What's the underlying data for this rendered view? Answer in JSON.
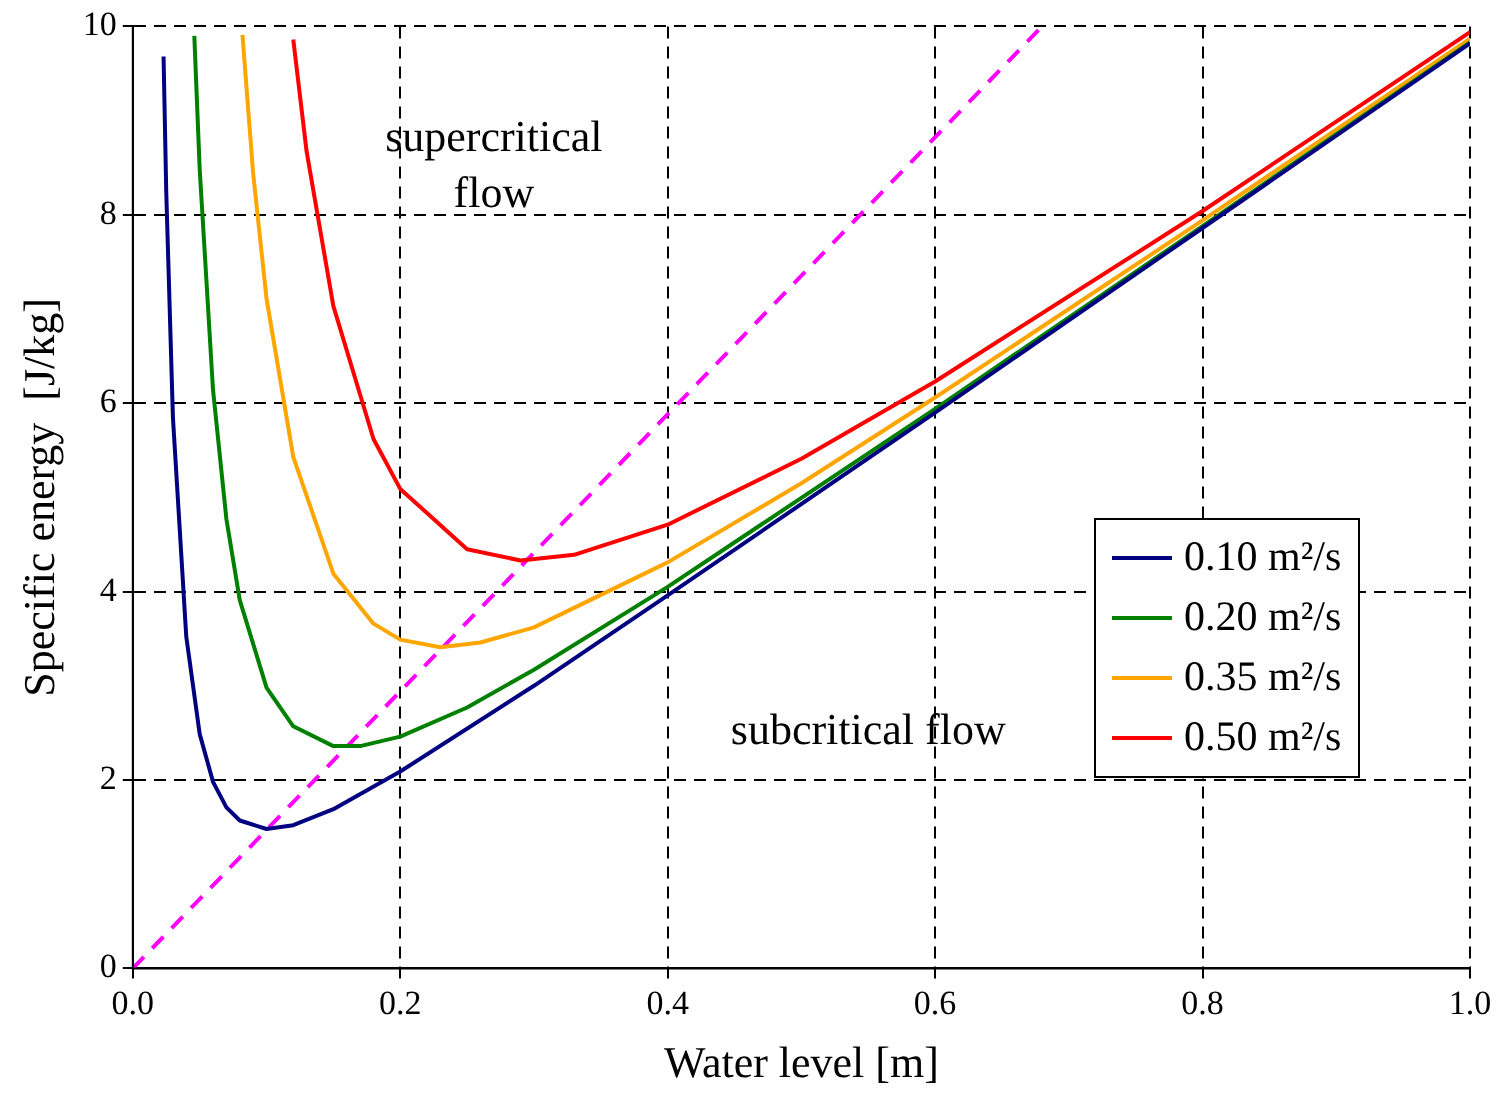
{
  "chart_data": {
    "type": "line",
    "xlabel": "Water level [m]",
    "ylabel": "Specific energy  [J/kg]",
    "xlim": [
      0,
      1
    ],
    "ylim": [
      0,
      10
    ],
    "xticks": [
      {
        "value": 0,
        "label": "0.0"
      },
      {
        "value": 0.2,
        "label": "0.2"
      },
      {
        "value": 0.4,
        "label": "0.4"
      },
      {
        "value": 0.6,
        "label": "0.6"
      },
      {
        "value": 0.8,
        "label": "0.8"
      },
      {
        "value": 1,
        "label": "1.0"
      }
    ],
    "yticks": [
      0,
      2,
      4,
      6,
      8,
      10
    ],
    "grid": true,
    "legend": "right",
    "marker": "none",
    "series": [
      {
        "name": "0.10 m²/s",
        "color": "#000080",
        "x": [
          0.023,
          0.025,
          0.03,
          0.04,
          0.05,
          0.06,
          0.07,
          0.08,
          0.1,
          0.12,
          0.15,
          0.2,
          0.3,
          0.4,
          0.6,
          0.8,
          1.0
        ],
        "values": [
          9.68,
          8.25,
          5.85,
          3.52,
          2.49,
          1.98,
          1.71,
          1.57,
          1.48,
          1.52,
          1.69,
          2.09,
          3.0,
          3.96,
          5.9,
          7.86,
          9.82
        ]
      },
      {
        "name": "0.20 m²/s",
        "color": "#008000",
        "x": [
          0.046,
          0.05,
          0.06,
          0.07,
          0.08,
          0.1,
          0.12,
          0.15,
          0.17,
          0.2,
          0.25,
          0.3,
          0.4,
          0.6,
          0.8,
          1.0
        ],
        "values": [
          9.9,
          8.49,
          6.14,
          4.77,
          3.91,
          2.98,
          2.57,
          2.36,
          2.36,
          2.46,
          2.77,
          3.17,
          4.05,
          5.94,
          7.88,
          9.83
        ]
      },
      {
        "name": "0.35 m²/s",
        "color": "#ffa500",
        "x": [
          0.082,
          0.09,
          0.1,
          0.12,
          0.15,
          0.18,
          0.2,
          0.23,
          0.26,
          0.3,
          0.4,
          0.5,
          0.6,
          0.8,
          1.0
        ],
        "values": [
          9.91,
          8.44,
          7.11,
          5.43,
          4.19,
          3.66,
          3.49,
          3.41,
          3.46,
          3.62,
          4.31,
          5.15,
          6.06,
          7.94,
          9.87
        ]
      },
      {
        "name": "0.50 m²/s",
        "color": "#ff0000",
        "x": [
          0.12,
          0.13,
          0.15,
          0.18,
          0.2,
          0.25,
          0.29,
          0.33,
          0.4,
          0.5,
          0.6,
          0.8,
          1.0
        ],
        "values": [
          9.86,
          8.67,
          7.03,
          5.62,
          5.09,
          4.45,
          4.33,
          4.39,
          4.71,
          5.41,
          6.23,
          8.04,
          9.94
        ]
      },
      {
        "color": "#ff00ff",
        "line_style": "dashed",
        "x": [
          0,
          0.68
        ],
        "values": [
          0,
          10
        ]
      }
    ],
    "annotations": [
      "supercritical flow",
      "subcritical flow"
    ]
  }
}
